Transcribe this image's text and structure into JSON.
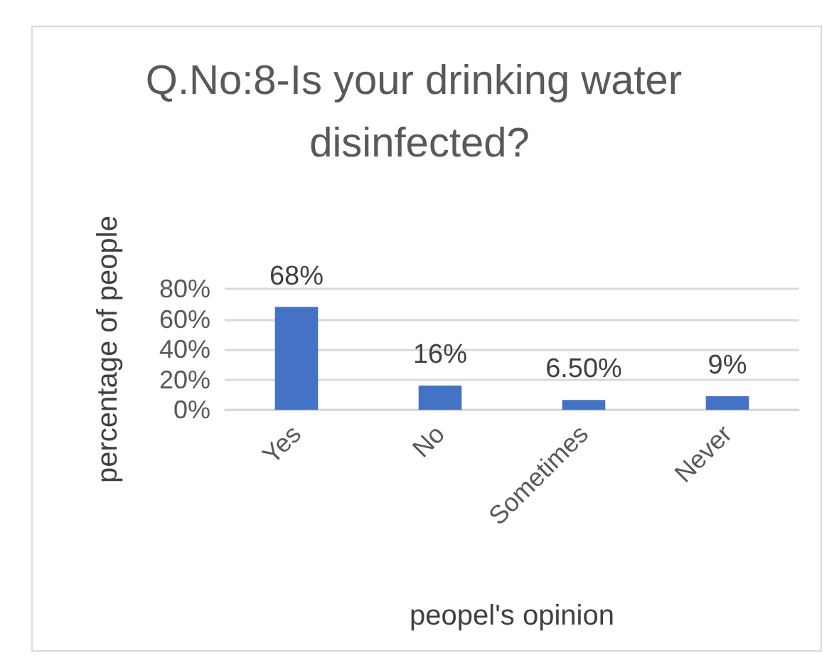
{
  "chart_data": {
    "type": "bar",
    "title": "Q.No:8-Is your drinking water disinfected?",
    "categories": [
      "Yes",
      "No",
      "Sometimes",
      "Never"
    ],
    "values": [
      68,
      16,
      6.5,
      9
    ],
    "value_labels": [
      "68%",
      "16%",
      "6.50%",
      "9%"
    ],
    "color": "#4472c4",
    "xlabel": "peopel's opinion",
    "ylabel": "percentage of people",
    "ylim": [
      0,
      80
    ],
    "yticks": [
      {
        "value": 0,
        "label": "0%"
      },
      {
        "value": 20,
        "label": "20%"
      },
      {
        "value": 40,
        "label": "40%"
      },
      {
        "value": 60,
        "label": "60%"
      },
      {
        "value": 80,
        "label": "80%"
      }
    ],
    "grid": "y"
  }
}
